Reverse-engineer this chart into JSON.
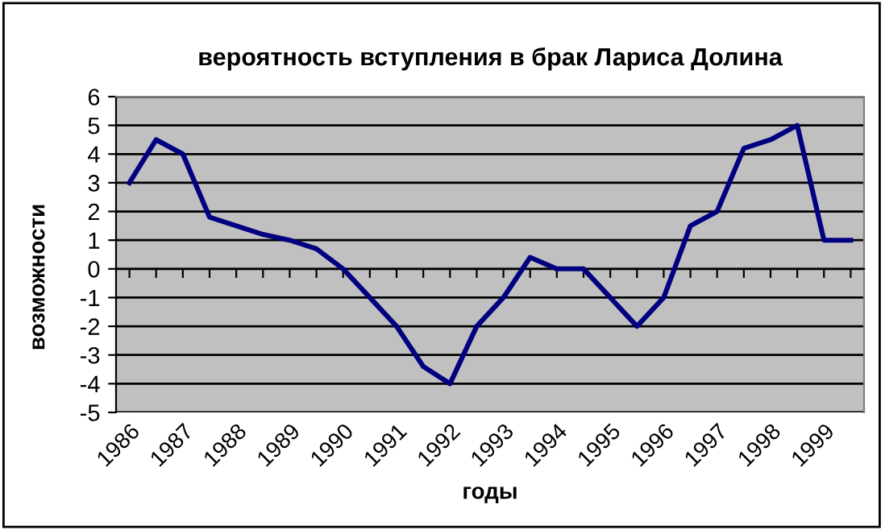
{
  "chart_data": {
    "type": "line",
    "title": "вероятность вступления в брак Лариса Долина",
    "xlabel": "годы",
    "ylabel": "возможности",
    "categories": [
      "1986",
      null,
      "1987",
      null,
      "1988",
      null,
      "1989",
      null,
      "1990",
      null,
      "1991",
      null,
      "1992",
      null,
      "1993",
      null,
      "1994",
      null,
      "1995",
      null,
      "1996",
      null,
      "1997",
      null,
      "1998",
      null,
      "1999",
      null
    ],
    "series": [
      {
        "color": "#000080",
        "values": [
          3.0,
          4.5,
          4.0,
          1.8,
          1.5,
          1.2,
          1.0,
          0.7,
          0,
          -1.0,
          -2.0,
          -3.4,
          -4.0,
          -2.0,
          -1.0,
          0.4,
          0,
          0,
          -1.0,
          -2.0,
          -1.0,
          1.5,
          2.0,
          4.2,
          4.5,
          5.0,
          1.0,
          1.0
        ]
      }
    ],
    "ylim": [
      -5,
      6
    ],
    "yticks": [
      -5,
      -4,
      -3,
      -2,
      -1,
      0,
      1,
      2,
      3,
      4,
      5,
      6
    ],
    "grid": "y",
    "marker": "none",
    "line_style": "solid"
  }
}
